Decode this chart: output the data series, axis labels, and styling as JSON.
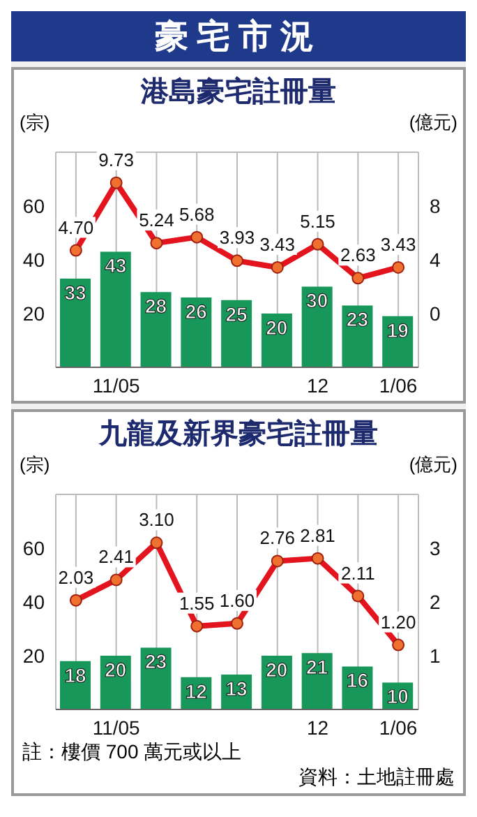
{
  "chart_data": [
    {
      "type": "bar",
      "title": "豪宅市況",
      "subtitle": "港島豪宅註冊量",
      "ylabel": "(宗)",
      "y2label": "(億元)",
      "categories": [
        null,
        "11/05",
        null,
        null,
        null,
        null,
        "12",
        null,
        "1/06"
      ],
      "series": [
        {
          "color": "#17975a",
          "values": [
            33,
            43,
            28,
            26,
            25,
            20,
            30,
            23,
            19
          ]
        },
        {
          "type": "line",
          "axis": "y2",
          "color": "#e3141e",
          "marker": "circle",
          "values": [
            4.7,
            9.73,
            5.24,
            5.68,
            3.93,
            3.43,
            5.15,
            2.63,
            3.43
          ],
          "value_labels": [
            "4.70",
            "9.73",
            "5.24",
            "5.68",
            "3.93",
            "3.43",
            "5.15",
            "2.63",
            "3.43"
          ]
        }
      ],
      "ylim": [
        0,
        80
      ],
      "yticks": [
        20,
        40,
        60
      ],
      "y2lim": [
        -4,
        12
      ],
      "y2ticks": [
        0,
        4,
        8
      ],
      "grid": true,
      "data_labels": true
    },
    {
      "type": "bar",
      "title": "九龍及新界豪宅註冊量",
      "ylabel": "(宗)",
      "y2label": "(億元)",
      "categories": [
        null,
        "11/05",
        null,
        null,
        null,
        null,
        "12",
        null,
        "1/06"
      ],
      "series": [
        {
          "color": "#17975a",
          "values": [
            18,
            20,
            23,
            12,
            13,
            20,
            21,
            16,
            10
          ]
        },
        {
          "type": "line",
          "axis": "y2",
          "color": "#e3141e",
          "marker": "circle",
          "values": [
            2.03,
            2.41,
            3.1,
            1.55,
            1.6,
            2.76,
            2.81,
            2.11,
            1.2
          ],
          "value_labels": [
            "2.03",
            "2.41",
            "3.10",
            "1.55",
            "1.60",
            "2.76",
            "2.81",
            "2.11",
            "1.20"
          ]
        }
      ],
      "ylim": [
        0,
        80
      ],
      "yticks": [
        20,
        40,
        60
      ],
      "y2lim": [
        0,
        4
      ],
      "y2ticks": [
        1,
        2,
        3
      ],
      "grid": true,
      "data_labels": true,
      "annotations": [
        "註：樓價 700 萬元或以上",
        "資料：土地註冊處"
      ]
    }
  ]
}
